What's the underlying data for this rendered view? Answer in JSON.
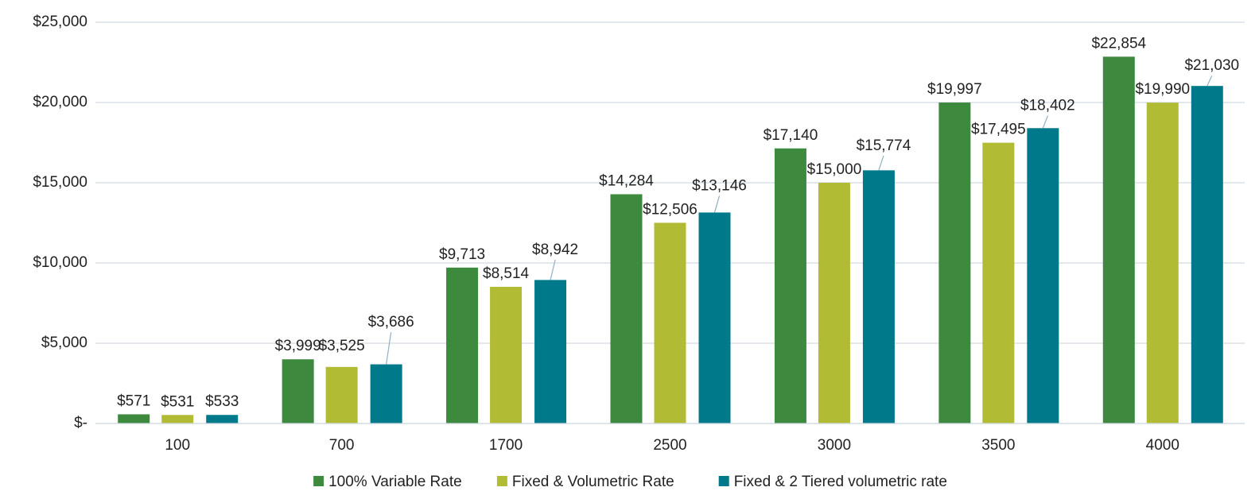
{
  "chart_data": {
    "type": "bar",
    "categories": [
      "100",
      "700",
      "1700",
      "2500",
      "3000",
      "3500",
      "4000"
    ],
    "series": [
      {
        "name": "100% Variable Rate",
        "color": "#3d8a3f",
        "values": [
          571,
          3999,
          9713,
          14284,
          17140,
          19997,
          22854
        ],
        "value_labels": [
          "$571",
          "$3,999",
          "$9,713",
          "$14,284",
          "$17,140",
          "$19,997",
          "$22,854"
        ]
      },
      {
        "name": "Fixed & Volumetric Rate",
        "color": "#b2bb34",
        "values": [
          531,
          3525,
          8514,
          12506,
          15000,
          17495,
          19990
        ],
        "value_labels": [
          "$531",
          "$3,525",
          "$8,514",
          "$12,506",
          "$15,000",
          "$17,495",
          "$19,990"
        ]
      },
      {
        "name": "Fixed & 2 Tiered volumetric rate",
        "color": "#00798a",
        "values": [
          533,
          3686,
          8942,
          13146,
          15774,
          18402,
          21030
        ],
        "value_labels": [
          "$533",
          "$3,686",
          "$8,942",
          "$13,146",
          "$15,774",
          "$18,402",
          "$21,030"
        ]
      }
    ],
    "ylim": [
      0,
      25000
    ],
    "yticks": [
      {
        "value": 0,
        "label": "$-"
      },
      {
        "value": 5000,
        "label": "$5,000"
      },
      {
        "value": 10000,
        "label": "$10,000"
      },
      {
        "value": 15000,
        "label": "$15,000"
      },
      {
        "value": 20000,
        "label": "$20,000"
      },
      {
        "value": 25000,
        "label": "$25,000"
      }
    ],
    "grid": true,
    "legend": "bottom"
  }
}
